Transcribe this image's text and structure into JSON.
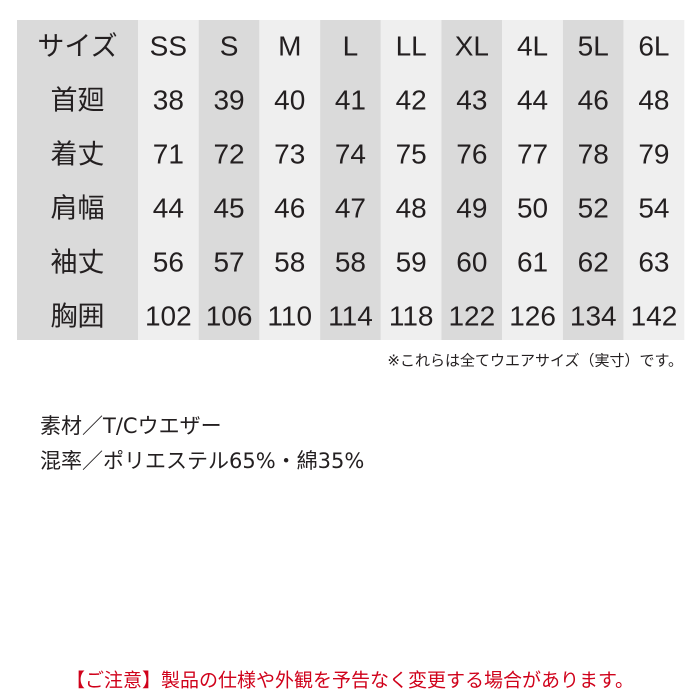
{
  "table": {
    "header": [
      "サイズ",
      "SS",
      "S",
      "M",
      "L",
      "LL",
      "XL",
      "4L",
      "5L",
      "6L"
    ],
    "rows": [
      [
        "首廻",
        38,
        39,
        40,
        41,
        42,
        43,
        44,
        46,
        48
      ],
      [
        "着丈",
        71,
        72,
        73,
        74,
        75,
        76,
        77,
        78,
        79
      ],
      [
        "肩幅",
        44,
        45,
        46,
        47,
        48,
        49,
        50,
        52,
        54
      ],
      [
        "袖丈",
        56,
        57,
        58,
        58,
        59,
        60,
        61,
        62,
        63
      ],
      [
        "胸囲",
        102,
        106,
        110,
        114,
        118,
        122,
        126,
        134,
        142
      ]
    ],
    "note": "※これらは全てウエアサイズ（実寸）です。"
  },
  "material": [
    "素材／T/Cウエザー",
    "混率／ポリエステル65%・綿35%"
  ],
  "notice": "【ご注意】製品の仕様や外観を予告なく変更する場合があります。"
}
